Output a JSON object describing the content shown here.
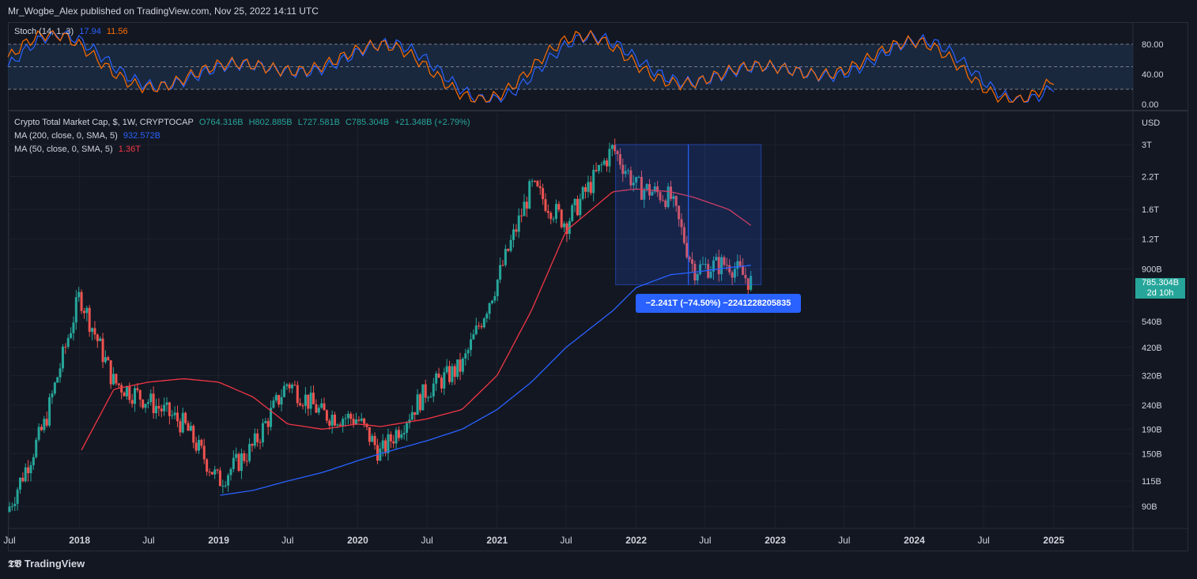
{
  "header": {
    "text": "Mr_Wogbe_Alex published on TradingView.com, Nov 25, 2022 14:11 UTC"
  },
  "stoch": {
    "label": "Stoch (14, 1, 3)",
    "k": "17.94",
    "d": "11.56",
    "ticks": [
      "80.00",
      "40.00",
      "0.00"
    ]
  },
  "main": {
    "title": "Crypto Total Market Cap, $, 1W, CRYPTOCAP",
    "o": "O764.316B",
    "h": "H802.885B",
    "l": "L727.581B",
    "c": "C785.304B",
    "chg": "+21.348B (+2.79%)",
    "ma200_label": "MA (200, close, 0, SMA, 5)",
    "ma200_val": "932.572B",
    "ma50_label": "MA (50, close, 0, SMA, 5)",
    "ma50_val": "1.36T",
    "currency": "USD",
    "price_ticks": [
      "3T",
      "2.2T",
      "1.6T",
      "1.2T",
      "900B",
      "540B",
      "420B",
      "320B",
      "240B",
      "190B",
      "150B",
      "115B",
      "90B"
    ],
    "last_price": "785.304B",
    "countdown": "2d 10h",
    "measure": "−2.241T (−74.50%) −2241228205835"
  },
  "time_axis": [
    "Jul",
    "2018",
    "Jul",
    "2019",
    "Jul",
    "2020",
    "Jul",
    "2021",
    "Jul",
    "2022",
    "Jul",
    "2023",
    "Jul",
    "2024",
    "Jul",
    "2025"
  ],
  "footer": {
    "brand": "TradingView"
  },
  "colors": {
    "up": "#26a69a",
    "down": "#ef5350",
    "ma200": "#2962ff",
    "ma50": "#f23645",
    "stoch_k": "#2962ff",
    "stoch_d": "#ff6d00",
    "bg": "#131722"
  },
  "chart_data": {
    "type": "candlestick",
    "title": "Crypto Total Market Cap, $, 1W, CRYPTOCAP",
    "y_scale": "log",
    "ylabel": "USD",
    "x": [
      "2017-07",
      "2017-10",
      "2018-01",
      "2018-04",
      "2018-07",
      "2018-10",
      "2019-01",
      "2019-04",
      "2019-07",
      "2019-10",
      "2020-01",
      "2020-03",
      "2020-07",
      "2020-10",
      "2021-01",
      "2021-04",
      "2021-07",
      "2021-11",
      "2022-01",
      "2022-04",
      "2022-06",
      "2022-09",
      "2022-11"
    ],
    "close": [
      90,
      200,
      700,
      300,
      250,
      200,
      115,
      160,
      300,
      220,
      210,
      150,
      280,
      350,
      800,
      2000,
      1400,
      2900,
      2000,
      1800,
      900,
      950,
      785
    ],
    "ma200": [
      null,
      null,
      null,
      null,
      null,
      null,
      100,
      105,
      115,
      125,
      140,
      150,
      170,
      190,
      230,
      300,
      420,
      600,
      750,
      850,
      870,
      910,
      932
    ],
    "ma50": [
      null,
      null,
      150,
      280,
      300,
      310,
      300,
      260,
      200,
      190,
      200,
      195,
      210,
      230,
      320,
      600,
      1300,
      1900,
      1950,
      1900,
      1800,
      1600,
      1360
    ],
    "stoch": {
      "k": 17.94,
      "d": 11.56,
      "range": [
        0,
        100
      ]
    },
    "measure": {
      "change": "−2.241T",
      "percent": "−74.50%",
      "raw": "−2241228205835"
    }
  }
}
